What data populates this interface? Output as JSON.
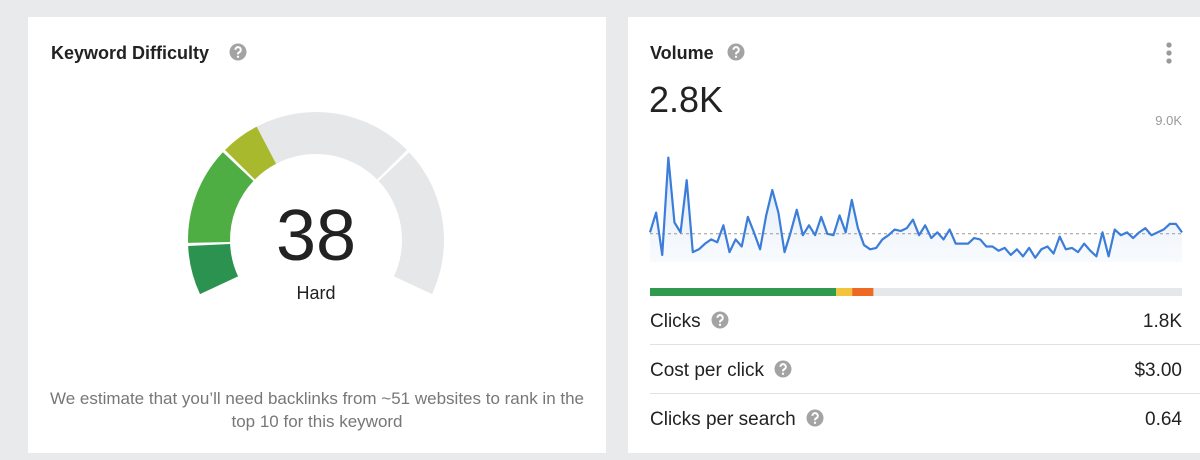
{
  "keyword_difficulty": {
    "title": "Keyword Difficulty",
    "gauge": {
      "value": 38,
      "scale": [
        0,
        100
      ],
      "label": "Hard",
      "empty_color": "#e6e7e9",
      "bands": [
        {
          "to": 10,
          "color": "#2b9250"
        },
        {
          "to": 30,
          "color": "#4eae44"
        },
        {
          "to": 70,
          "color": "#a9b92e"
        },
        {
          "to": 100,
          "color": "#d0d0d0"
        }
      ]
    },
    "description": "We estimate that you’ll need backlinks from ~51 websites to rank in the top 10 for this keyword"
  },
  "volume": {
    "title": "Volume",
    "value": "2.8K",
    "chart_data": {
      "type": "line",
      "color": "#3b7dd8",
      "ylim": [
        0,
        9000
      ],
      "yticks": [
        {
          "value": 9000,
          "label": "9.0K"
        }
      ],
      "reference": 2000,
      "values": [
        2100,
        3500,
        500,
        7400,
        2800,
        2100,
        5800,
        700,
        900,
        1300,
        1600,
        1400,
        2600,
        700,
        1600,
        1100,
        3200,
        2100,
        900,
        3300,
        5100,
        3500,
        700,
        2100,
        3700,
        1900,
        2600,
        1900,
        3200,
        2000,
        1900,
        3300,
        2100,
        4400,
        2400,
        1200,
        900,
        1000,
        1600,
        1900,
        2300,
        2200,
        2400,
        3000,
        1900,
        2600,
        1700,
        2100,
        1600,
        2300,
        1300,
        1300,
        1300,
        1700,
        1600,
        1100,
        1100,
        800,
        1000,
        500,
        900,
        400,
        1000,
        300,
        900,
        1100,
        600,
        1800,
        900,
        1000,
        700,
        1300,
        800,
        400,
        2100,
        400,
        2300,
        1900,
        2100,
        1700,
        2100,
        2400,
        1900,
        2100,
        2300,
        2700,
        2700,
        2100
      ]
    },
    "click_bar": [
      {
        "value": 35,
        "color": "#2f9a4e"
      },
      {
        "value": 3,
        "color": "#f3c43b"
      },
      {
        "value": 4,
        "color": "#ee6a24"
      },
      {
        "value": 58,
        "color": "#e6e7e9"
      }
    ],
    "rows": [
      {
        "label": "Clicks",
        "value": "1.8K"
      },
      {
        "label": "Cost per click",
        "value": "$3.00"
      },
      {
        "label": "Clicks per search",
        "value": "0.64"
      }
    ]
  }
}
